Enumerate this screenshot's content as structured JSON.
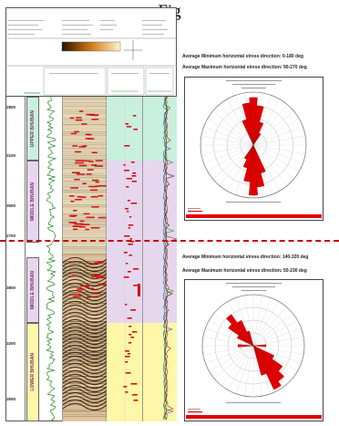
{
  "figure_label": "Fig",
  "zones": [
    {
      "label": "UPPER BHUBAN",
      "color": "#c9f0dd"
    },
    {
      "label": "MIDDLE BHUBAN",
      "color": "#e6d7ef"
    },
    {
      "label": "MIDDLE BHUBAN",
      "color": "#e6d7ef"
    },
    {
      "label": "LOWER BHUBAN",
      "color": "#fff7a8"
    }
  ],
  "depth_marks": [
    "2800",
    "3100",
    "3500",
    "2700",
    "3800",
    "3200",
    "3500"
  ],
  "captions": {
    "upper_min": "Average Minimum horizontal stress direction: 0-180 deg",
    "upper_max": "Average Maximum horizontal stress direction: 90-270 deg",
    "lower_min": "Average Minimum horizontal stress direction: 140-320 deg",
    "lower_max": "Average Maximum horizontal stress direction: 50-230 deg"
  },
  "colors": {
    "separator": "#c00000",
    "rose_fill": "#e00000",
    "green_zone": "#c9f0dd",
    "purple_zone": "#e6d7ef",
    "yellow_zone": "#fff7a8"
  }
}
